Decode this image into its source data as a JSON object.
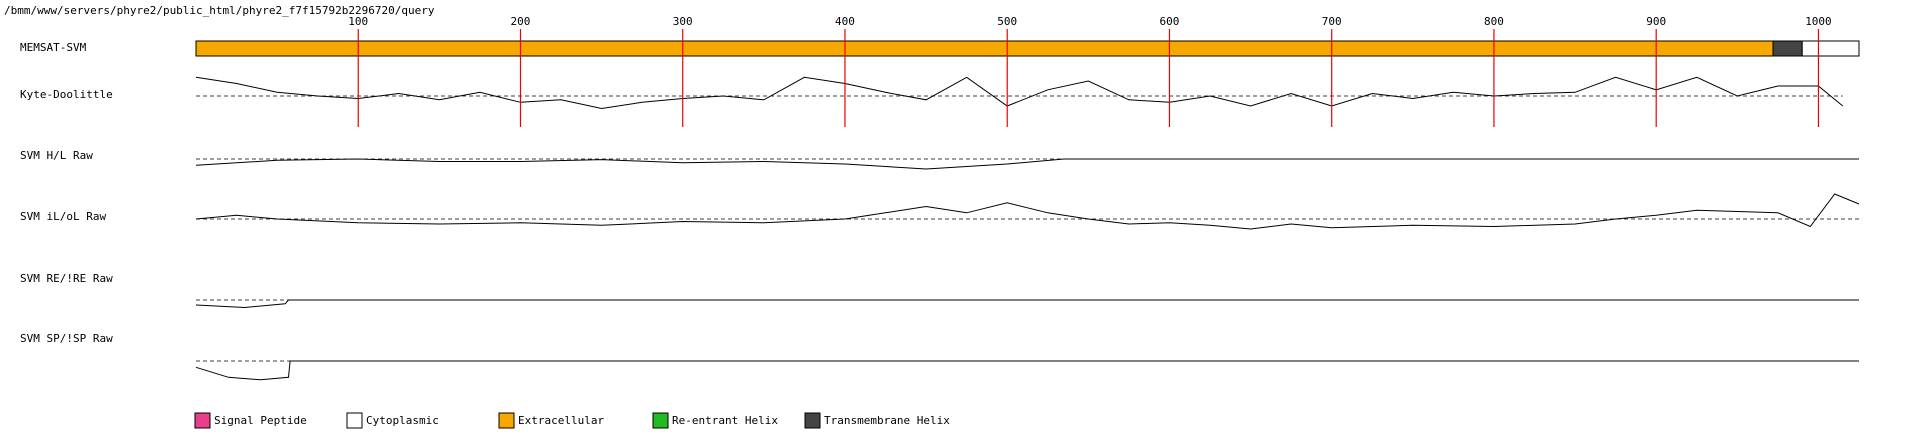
{
  "path": "/bmm/www/servers/phyre2/public_html/phyre2_f7f15792b2296720/query",
  "chart_data": {
    "type": "memsat",
    "xlim": [
      0,
      1025
    ],
    "xticks": [
      100,
      200,
      300,
      400,
      500,
      600,
      700,
      800,
      900,
      1000
    ],
    "topology": {
      "name": "MEMSAT-SVM",
      "segments": [
        {
          "start": 0,
          "end": 972,
          "color": "#f6a800"
        },
        {
          "start": 972,
          "end": 990,
          "color": "#444444"
        },
        {
          "start": 990,
          "end": 1025,
          "color": "#ffffff"
        }
      ]
    },
    "tracks": [
      {
        "name": "Kyte-Doolittle",
        "x": [
          0,
          25,
          50,
          75,
          100,
          125,
          150,
          175,
          200,
          225,
          250,
          275,
          300,
          325,
          350,
          375,
          400,
          425,
          450,
          475,
          500,
          525,
          550,
          575,
          600,
          625,
          650,
          675,
          700,
          725,
          750,
          775,
          800,
          825,
          850,
          875,
          900,
          925,
          950,
          975,
          1000,
          1015
        ],
        "values": [
          1.5,
          1.0,
          0.3,
          0,
          -0.2,
          0.2,
          -0.3,
          0.3,
          -0.5,
          -0.3,
          -1.0,
          -0.5,
          -0.2,
          0,
          -0.3,
          1.5,
          1.0,
          0.3,
          -0.3,
          1.5,
          -0.8,
          0.5,
          1.2,
          -0.3,
          -0.5,
          0,
          -0.8,
          0.2,
          -0.8,
          0.2,
          -0.2,
          0.3,
          0,
          0.2,
          0.3,
          1.5,
          0.5,
          1.5,
          0,
          0.8,
          0.8,
          -0.8
        ]
      },
      {
        "name": "SVM H/L Raw",
        "x": [
          0,
          50,
          100,
          150,
          200,
          250,
          300,
          350,
          400,
          450,
          500,
          535,
          1025
        ],
        "values": [
          -0.5,
          -0.1,
          0,
          -0.2,
          -0.2,
          -0.05,
          -0.3,
          -0.2,
          -0.4,
          -0.8,
          -0.4,
          0,
          0
        ]
      },
      {
        "name": "SVM iL/oL Raw",
        "x": [
          0,
          25,
          50,
          100,
          150,
          200,
          250,
          300,
          350,
          400,
          425,
          450,
          475,
          500,
          525,
          550,
          575,
          600,
          625,
          650,
          675,
          700,
          750,
          800,
          850,
          875,
          900,
          925,
          975,
          995,
          1010,
          1025
        ],
        "values": [
          0,
          0.3,
          0,
          -0.3,
          -0.4,
          -0.3,
          -0.5,
          -0.2,
          -0.3,
          0,
          0.5,
          1.0,
          0.5,
          1.3,
          0.5,
          0,
          -0.4,
          -0.3,
          -0.5,
          -0.8,
          -0.4,
          -0.7,
          -0.5,
          -0.6,
          -0.4,
          0,
          0.3,
          0.7,
          0.5,
          -0.6,
          2.0,
          1.2
        ]
      },
      {
        "name": "SVM RE/!RE Raw",
        "x": [
          0,
          30,
          55,
          57,
          1025
        ],
        "values": [
          -0.4,
          -0.6,
          -0.3,
          0,
          0
        ]
      },
      {
        "name": "SVM SP/!SP Raw",
        "x": [
          0,
          20,
          40,
          57,
          58,
          1025
        ],
        "values": [
          -0.5,
          -1.3,
          -1.5,
          -1.3,
          0,
          0
        ]
      }
    ],
    "legend": [
      {
        "label": "Signal Peptide",
        "color": "#e83e8c"
      },
      {
        "label": "Cytoplasmic",
        "color": "#ffffff"
      },
      {
        "label": "Extracellular",
        "color": "#f6a800"
      },
      {
        "label": "Re-entrant Helix",
        "color": "#22bb22"
      },
      {
        "label": "Transmembrane Helix",
        "color": "#444444"
      }
    ]
  }
}
